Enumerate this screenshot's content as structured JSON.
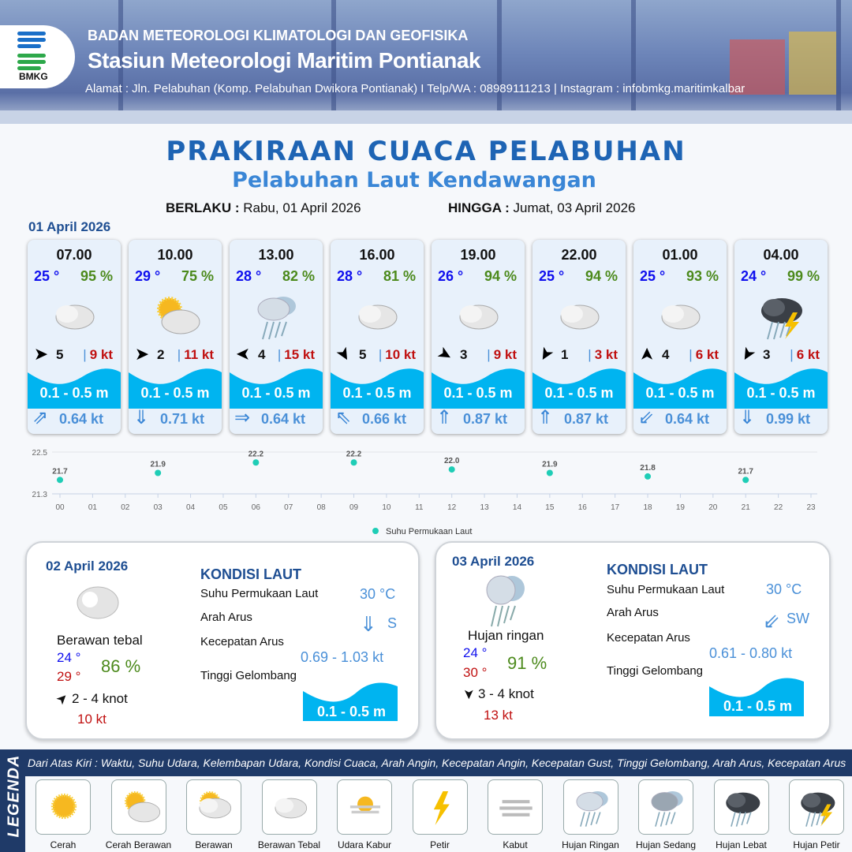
{
  "header": {
    "org": "BADAN METEOROLOGI KLIMATOLOGI DAN GEOFISIKA",
    "station": "Stasiun Meteorologi Maritim Pontianak",
    "address": "Alamat : Jln. Pelabuhan (Komp. Pelabuhan Dwikora Pontianak) I Telp/WA : 08989111213 | Instagram : infobmkg.maritimkalbar",
    "logo_text": "BMKG"
  },
  "title": "PRAKIRAAN CUACA PELABUHAN",
  "subtitle": "Pelabuhan Laut Kendawangan",
  "validity": {
    "from_label": "BERLAKU :",
    "from": "Rabu, 01 April 2026",
    "to_label": "HINGGA :",
    "to": "Jumat, 03 April 2026"
  },
  "day1": {
    "date": "01 April 2026",
    "slots": [
      {
        "time": "07.00",
        "temp": "25 °",
        "hum": "95 %",
        "icon": "berawan-tebal",
        "wind_deg": 180,
        "wind": "5",
        "gust": "9 kt",
        "wave": "0.1 - 0.5 m",
        "cur_icon": "⇗",
        "cur": "0.64 kt"
      },
      {
        "time": "10.00",
        "temp": "29 °",
        "hum": "75 %",
        "icon": "cerah-berawan",
        "wind_deg": 180,
        "wind": "2",
        "gust": "11 kt",
        "wave": "0.1 - 0.5 m",
        "cur_icon": "⇓",
        "cur": "0.71 kt"
      },
      {
        "time": "13.00",
        "temp": "28 °",
        "hum": "82 %",
        "icon": "hujan-ringan",
        "wind_deg": 0,
        "wind": "4",
        "gust": "15 kt",
        "wave": "0.1 - 0.5 m",
        "cur_icon": "⇒",
        "cur": "0.64 kt"
      },
      {
        "time": "16.00",
        "temp": "28 °",
        "hum": "81 %",
        "icon": "berawan-tebal",
        "wind_deg": -120,
        "wind": "5",
        "gust": "10 kt",
        "wave": "0.1 - 0.5 m",
        "cur_icon": "⇖",
        "cur": "0.66 kt"
      },
      {
        "time": "19.00",
        "temp": "26 °",
        "hum": "94 %",
        "icon": "berawan-tebal",
        "wind_deg": -150,
        "wind": "3",
        "gust": "9 kt",
        "wave": "0.1 - 0.5 m",
        "cur_icon": "⇑",
        "cur": "0.87 kt"
      },
      {
        "time": "22.00",
        "temp": "25 °",
        "hum": "94 %",
        "icon": "berawan-tebal",
        "wind_deg": -60,
        "wind": "1",
        "gust": "3 kt",
        "wave": "0.1 - 0.5 m",
        "cur_icon": "⇑",
        "cur": "0.87 kt"
      },
      {
        "time": "01.00",
        "temp": "25 °",
        "hum": "93 %",
        "icon": "berawan-tebal",
        "wind_deg": 90,
        "wind": "4",
        "gust": "6 kt",
        "wave": "0.1 - 0.5 m",
        "cur_icon": "⇙",
        "cur": "0.64 kt"
      },
      {
        "time": "04.00",
        "temp": "24 °",
        "hum": "99 %",
        "icon": "hujan-petir",
        "wind_deg": -60,
        "wind": "3",
        "gust": "6 kt",
        "wave": "0.1 - 0.5 m",
        "cur_icon": "⇓",
        "cur": "0.99 kt"
      }
    ]
  },
  "chart_data": {
    "type": "scatter",
    "x_ticks": [
      "00",
      "01",
      "02",
      "03",
      "04",
      "05",
      "06",
      "07",
      "08",
      "09",
      "10",
      "11",
      "12",
      "13",
      "14",
      "15",
      "16",
      "17",
      "18",
      "19",
      "20",
      "21",
      "22",
      "23"
    ],
    "x": [
      0,
      3,
      6,
      9,
      12,
      15,
      18,
      21
    ],
    "values": [
      21.7,
      21.9,
      22.2,
      22.2,
      22.0,
      21.9,
      21.8,
      21.7
    ],
    "labels": [
      "21.7",
      "21.9",
      "22.2",
      "22.2",
      "22.0",
      "21.9",
      "21.8",
      "21.7"
    ],
    "ylim": [
      21.3,
      22.5
    ],
    "y_ticks": [
      "22.5",
      "21.3"
    ],
    "legend": "Suhu Permukaan Laut",
    "legend_position": "bottom",
    "color": "#1fcdb6",
    "grid": true
  },
  "day2": {
    "date": "02 April 2026",
    "cond": "Berawan tebal",
    "tmin": "24 °",
    "tmax": "29 °",
    "hum": "86 %",
    "wind": "2  - 4 knot",
    "gust": "10 kt",
    "sea_title": "KONDISI LAUT",
    "sst_label": "Suhu Permukaan Laut",
    "sst": "30 °C",
    "dir_label": "Arah Arus",
    "dir_icon": "⇓",
    "dir": "S",
    "spd_label": "Kecepatan Arus",
    "spd": "0.69 - 1.03 kt",
    "wave_label": "Tinggi Gelombang",
    "wave": "0.1 - 0.5 m"
  },
  "day3": {
    "date": "03 April 2026",
    "cond": "Hujan ringan",
    "tmin": "24 °",
    "tmax": "30 °",
    "hum": "91 %",
    "wind": "3  - 4 knot",
    "gust": "13 kt",
    "sea_title": "KONDISI LAUT",
    "sst_label": "Suhu Permukaan Laut",
    "sst": "30 °C",
    "dir_label": "Arah Arus",
    "dir_icon": "⇙",
    "dir": "SW",
    "spd_label": "Kecepatan Arus",
    "spd": "0.61 - 0.80 kt",
    "wave_label": "Tinggi Gelombang",
    "wave": "0.1 - 0.5 m"
  },
  "legend": {
    "title": "LEGENDA",
    "desc": "Dari Atas Kiri : Waktu, Suhu Udara, Kelembapan Udara, Kondisi Cuaca, Arah Angin, Kecepatan Angin, Kecepatan Gust, Tinggi Gelombang, Arah Arus, Kecepatan Arus",
    "items": [
      {
        "label": "Cerah",
        "icon": "cerah"
      },
      {
        "label": "Cerah Berawan",
        "icon": "cerah-berawan"
      },
      {
        "label": "Berawan",
        "icon": "berawan"
      },
      {
        "label": "Berawan Tebal",
        "icon": "berawan-tebal"
      },
      {
        "label": "Udara Kabur",
        "icon": "udara-kabur"
      },
      {
        "label": "Petir",
        "icon": "petir"
      },
      {
        "label": "Kabut",
        "icon": "kabut"
      },
      {
        "label": "Hujan Ringan",
        "icon": "hujan-ringan"
      },
      {
        "label": "Hujan Sedang",
        "icon": "hujan-sedang"
      },
      {
        "label": "Hujan Lebat",
        "icon": "hujan-lebat"
      },
      {
        "label": "Hujan Petir",
        "icon": "hujan-petir"
      }
    ]
  },
  "colors": {
    "title": "#1e64b4",
    "wave": "#00b4f0",
    "temp": "#1010ee",
    "humidity": "#4c8a1c",
    "gust": "#c01010",
    "current": "#4a90d8",
    "legend_bar": "#1f3a68"
  }
}
